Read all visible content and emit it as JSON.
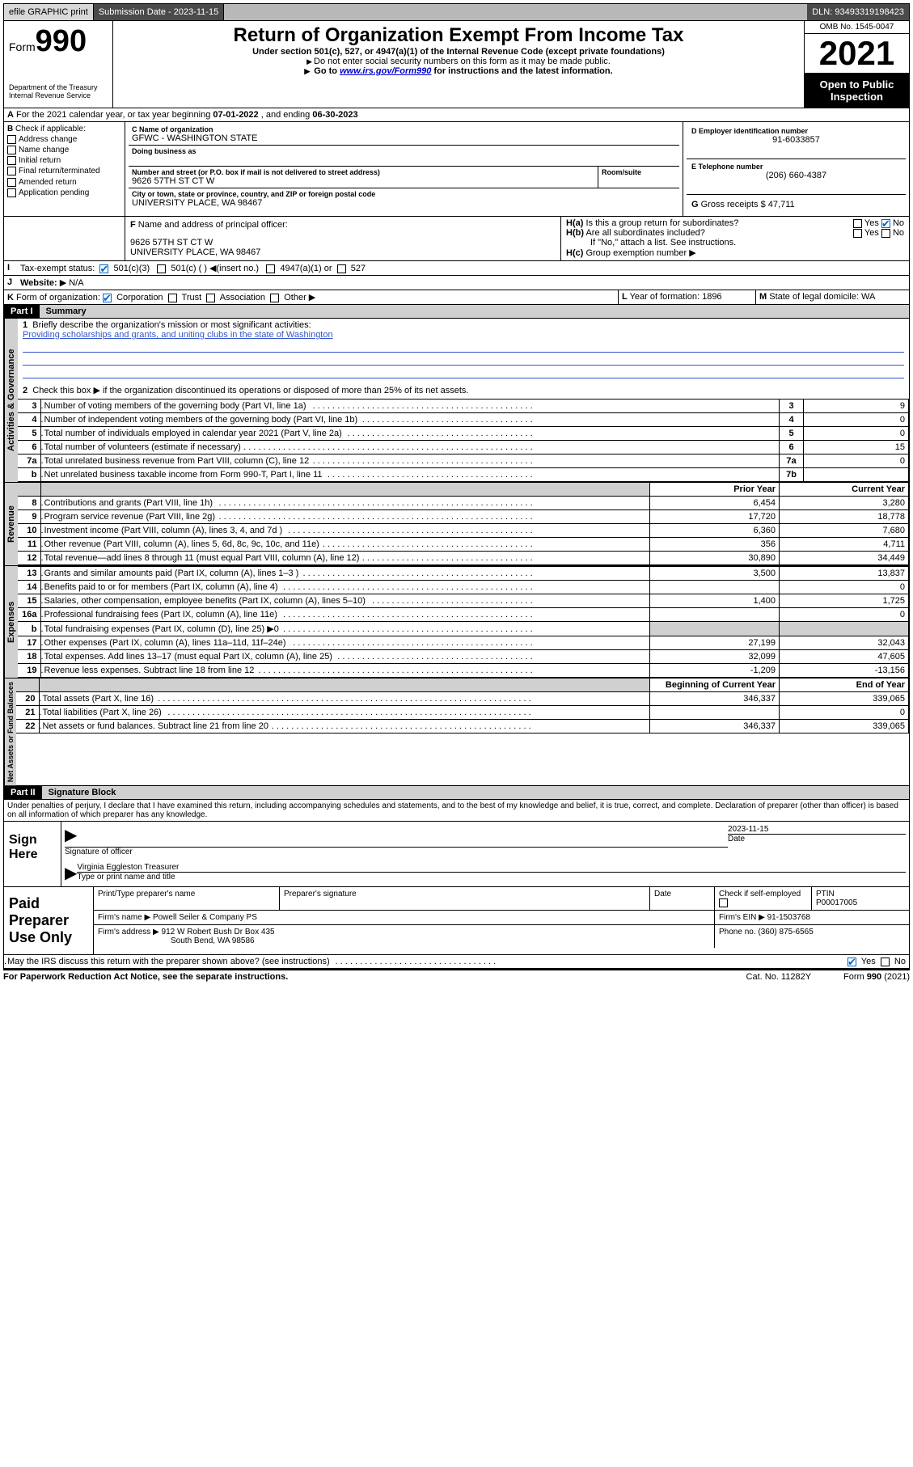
{
  "topbar": {
    "efile": "efile GRAPHIC print",
    "submission_label": "Submission Date - 2023-11-15",
    "dln": "DLN: 93493319198423"
  },
  "header": {
    "form_word": "Form",
    "form_number": "990",
    "dept": "Department of the Treasury",
    "irs": "Internal Revenue Service",
    "title": "Return of Organization Exempt From Income Tax",
    "subtitle": "Under section 501(c), 527, or 4947(a)(1) of the Internal Revenue Code (except private foundations)",
    "note1": "Do not enter social security numbers on this form as it may be made public.",
    "note2_pre": "Go to ",
    "note2_link": "www.irs.gov/Form990",
    "note2_post": " for instructions and the latest information.",
    "omb": "OMB No. 1545-0047",
    "year": "2021",
    "open": "Open to Public Inspection"
  },
  "lineA": {
    "text_pre": "For the 2021 calendar year, or tax year beginning ",
    "begin": "07-01-2022",
    "mid": " , and ending ",
    "end": "06-30-2023"
  },
  "boxB": {
    "label": "Check if applicable:",
    "items": [
      "Address change",
      "Name change",
      "Initial return",
      "Final return/terminated",
      "Amended return",
      "Application pending"
    ]
  },
  "boxC": {
    "name_label": "Name of organization",
    "name": "GFWC - WASHINGTON STATE",
    "dba_label": "Doing business as",
    "dba": "",
    "street_label": "Number and street (or P.O. box if mail is not delivered to street address)",
    "room_label": "Room/suite",
    "street": "9626 57TH ST CT W",
    "city_label": "City or town, state or province, country, and ZIP or foreign postal code",
    "city": "UNIVERSITY PLACE, WA  98467"
  },
  "boxD": {
    "label": "Employer identification number",
    "ein": "91-6033857"
  },
  "boxE": {
    "label": "Telephone number",
    "phone": "(206) 660-4387"
  },
  "boxG": {
    "label": "Gross receipts $",
    "val": "47,711"
  },
  "boxF": {
    "label": "Name and address of principal officer:",
    "line1": "9626 57TH ST CT W",
    "line2": "UNIVERSITY PLACE, WA  98467"
  },
  "boxH": {
    "a": "Is this a group return for subordinates?",
    "b": "Are all subordinates included?",
    "note": "If \"No,\" attach a list. See instructions.",
    "c": "Group exemption number"
  },
  "boxI": {
    "label": "Tax-exempt status:",
    "opts": [
      "501(c)(3)",
      "501(c) (  )",
      "(insert no.)",
      "4947(a)(1) or",
      "527"
    ]
  },
  "boxJ": {
    "label": "Website:",
    "val": "N/A"
  },
  "boxK": {
    "label": "Form of organization:",
    "opts": [
      "Corporation",
      "Trust",
      "Association",
      "Other"
    ]
  },
  "boxL": {
    "label": "Year of formation:",
    "val": "1896"
  },
  "boxM": {
    "label": "State of legal domicile:",
    "val": "WA"
  },
  "part1": {
    "hdr": "Part I",
    "title": "Summary",
    "q1": "Briefly describe the organization's mission or most significant activities:",
    "q1_ans": "Providing scholarships and grants, and uniting clubs in the state of Washington",
    "q2": "Check this box ▶  if the organization discontinued its operations or disposed of more than 25% of its net assets.",
    "rows_gov": [
      {
        "n": "3",
        "t": "Number of voting members of the governing body (Part VI, line 1a)",
        "box": "3",
        "v": "9"
      },
      {
        "n": "4",
        "t": "Number of independent voting members of the governing body (Part VI, line 1b)",
        "box": "4",
        "v": "0"
      },
      {
        "n": "5",
        "t": "Total number of individuals employed in calendar year 2021 (Part V, line 2a)",
        "box": "5",
        "v": "0"
      },
      {
        "n": "6",
        "t": "Total number of volunteers (estimate if necessary)",
        "box": "6",
        "v": "15"
      },
      {
        "n": "7a",
        "t": "Total unrelated business revenue from Part VIII, column (C), line 12",
        "box": "7a",
        "v": "0"
      },
      {
        "n": "b",
        "t": "Net unrelated business taxable income from Form 990-T, Part I, line 11",
        "box": "7b",
        "v": ""
      }
    ],
    "col_prior": "Prior Year",
    "col_current": "Current Year",
    "rows_rev": [
      {
        "n": "8",
        "t": "Contributions and grants (Part VIII, line 1h)",
        "p": "6,454",
        "c": "3,280"
      },
      {
        "n": "9",
        "t": "Program service revenue (Part VIII, line 2g)",
        "p": "17,720",
        "c": "18,778"
      },
      {
        "n": "10",
        "t": "Investment income (Part VIII, column (A), lines 3, 4, and 7d )",
        "p": "6,360",
        "c": "7,680"
      },
      {
        "n": "11",
        "t": "Other revenue (Part VIII, column (A), lines 5, 6d, 8c, 9c, 10c, and 11e)",
        "p": "356",
        "c": "4,711"
      },
      {
        "n": "12",
        "t": "Total revenue—add lines 8 through 11 (must equal Part VIII, column (A), line 12)",
        "p": "30,890",
        "c": "34,449"
      }
    ],
    "rows_exp": [
      {
        "n": "13",
        "t": "Grants and similar amounts paid (Part IX, column (A), lines 1–3 )",
        "p": "3,500",
        "c": "13,837"
      },
      {
        "n": "14",
        "t": "Benefits paid to or for members (Part IX, column (A), line 4)",
        "p": "",
        "c": "0"
      },
      {
        "n": "15",
        "t": "Salaries, other compensation, employee benefits (Part IX, column (A), lines 5–10)",
        "p": "1,400",
        "c": "1,725"
      },
      {
        "n": "16a",
        "t": "Professional fundraising fees (Part IX, column (A), line 11e)",
        "p": "",
        "c": "0"
      },
      {
        "n": "b",
        "t": "Total fundraising expenses (Part IX, column (D), line 25) ▶0",
        "p": "",
        "c": "",
        "shade": true
      },
      {
        "n": "17",
        "t": "Other expenses (Part IX, column (A), lines 11a–11d, 11f–24e)",
        "p": "27,199",
        "c": "32,043"
      },
      {
        "n": "18",
        "t": "Total expenses. Add lines 13–17 (must equal Part IX, column (A), line 25)",
        "p": "32,099",
        "c": "47,605"
      },
      {
        "n": "19",
        "t": "Revenue less expenses. Subtract line 18 from line 12",
        "p": "-1,209",
        "c": "-13,156"
      }
    ],
    "col_begin": "Beginning of Current Year",
    "col_end": "End of Year",
    "rows_net": [
      {
        "n": "20",
        "t": "Total assets (Part X, line 16)",
        "p": "346,337",
        "c": "339,065"
      },
      {
        "n": "21",
        "t": "Total liabilities (Part X, line 26)",
        "p": "",
        "c": "0"
      },
      {
        "n": "22",
        "t": "Net assets or fund balances. Subtract line 21 from line 20",
        "p": "346,337",
        "c": "339,065"
      }
    ],
    "tab_gov": "Activities & Governance",
    "tab_rev": "Revenue",
    "tab_exp": "Expenses",
    "tab_net": "Net Assets or Fund Balances"
  },
  "part2": {
    "hdr": "Part II",
    "title": "Signature Block",
    "declaration": "Under penalties of perjury, I declare that I have examined this return, including accompanying schedules and statements, and to the best of my knowledge and belief, it is true, correct, and complete. Declaration of preparer (other than officer) is based on all information of which preparer has any knowledge.",
    "sign_here": "Sign Here",
    "sig_officer": "Signature of officer",
    "sig_date_label": "Date",
    "sig_date": "2023-11-15",
    "officer_name": "Virginia Eggleston Treasurer",
    "type_name": "Type or print name and title",
    "paid": "Paid Preparer Use Only",
    "prep_name_label": "Print/Type preparer's name",
    "prep_sig_label": "Preparer's signature",
    "date_label": "Date",
    "check_self": "Check  if self-employed",
    "ptin_label": "PTIN",
    "ptin": "P00017005",
    "firm_name_label": "Firm's name   ▶",
    "firm_name": "Powell Seiler & Company PS",
    "firm_ein_label": "Firm's EIN ▶",
    "firm_ein": "91-1503768",
    "firm_addr_label": "Firm's address ▶",
    "firm_addr1": "912 W Robert Bush Dr Box 435",
    "firm_addr2": "South Bend, WA  98586",
    "phone_label": "Phone no.",
    "phone": "(360) 875-6565",
    "discuss": "May the IRS discuss this return with the preparer shown above? (see instructions)"
  },
  "footer": {
    "left": "For Paperwork Reduction Act Notice, see the separate instructions.",
    "mid": "Cat. No. 11282Y",
    "right": "Form 990 (2021)"
  }
}
